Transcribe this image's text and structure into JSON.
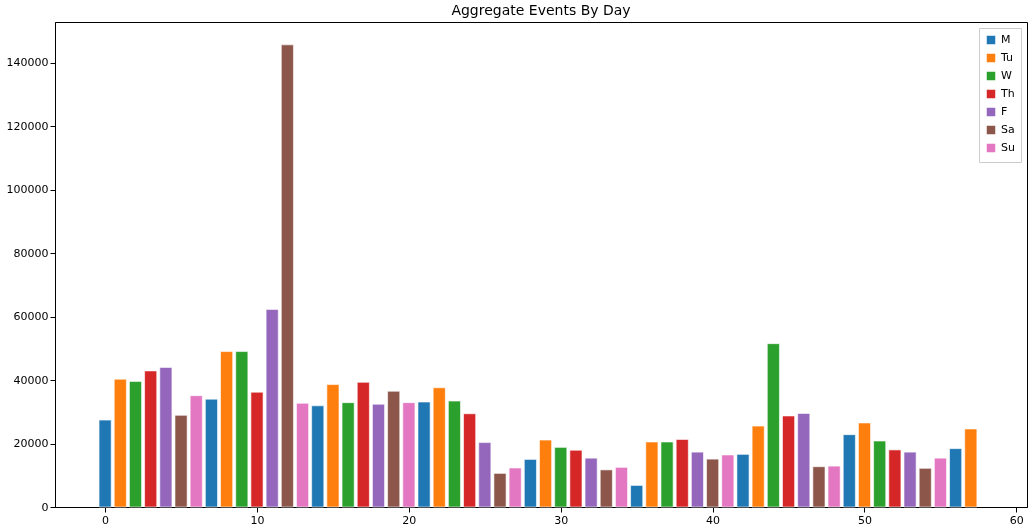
{
  "chart_data": {
    "type": "bar",
    "title": "Aggregate Events By Day",
    "xlim": [
      -3.3,
      60.7
    ],
    "xticks": [
      0,
      10,
      20,
      30,
      40,
      50,
      60
    ],
    "ylim": [
      0,
      152900
    ],
    "yticks": [
      0,
      20000,
      40000,
      60000,
      80000,
      100000,
      120000,
      140000
    ],
    "grid": false,
    "legend": "top right",
    "series": [
      {
        "name": "M",
        "color": "#1f77b4",
        "x": [
          0,
          7,
          14,
          21,
          28,
          35,
          42,
          49,
          56
        ],
        "values": [
          27400,
          34000,
          31900,
          33100,
          15000,
          6800,
          16600,
          22800,
          18400
        ]
      },
      {
        "name": "Tu",
        "color": "#ff7f0e",
        "x": [
          1,
          8,
          15,
          22,
          29,
          36,
          43,
          50,
          57
        ],
        "values": [
          40300,
          49000,
          38600,
          37600,
          21100,
          20500,
          25500,
          26500,
          24600
        ]
      },
      {
        "name": "W",
        "color": "#2ca02c",
        "x": [
          2,
          9,
          16,
          23,
          30,
          37,
          44,
          51
        ],
        "values": [
          39600,
          49000,
          32900,
          33400,
          18800,
          20500,
          51500,
          20800
        ]
      },
      {
        "name": "Th",
        "color": "#d62728",
        "x": [
          3,
          10,
          17,
          24,
          31,
          38,
          45,
          52
        ],
        "values": [
          42900,
          36200,
          39300,
          29400,
          17900,
          21300,
          28700,
          18000
        ]
      },
      {
        "name": "F",
        "color": "#9467bd",
        "x": [
          4,
          11,
          18,
          25,
          32,
          39,
          46,
          53
        ],
        "values": [
          44000,
          62300,
          32400,
          20300,
          15400,
          17300,
          29500,
          17300
        ]
      },
      {
        "name": "Sa",
        "color": "#8c564b",
        "x": [
          5,
          12,
          19,
          26,
          33,
          40,
          47,
          54
        ],
        "values": [
          28900,
          145700,
          36500,
          10600,
          11700,
          15100,
          12700,
          12200
        ]
      },
      {
        "name": "Su",
        "color": "#e377c2",
        "x": [
          6,
          13,
          20,
          27,
          34,
          41,
          48,
          55
        ],
        "values": [
          35100,
          32700,
          32900,
          12300,
          12500,
          16400,
          12900,
          15400
        ]
      }
    ]
  }
}
